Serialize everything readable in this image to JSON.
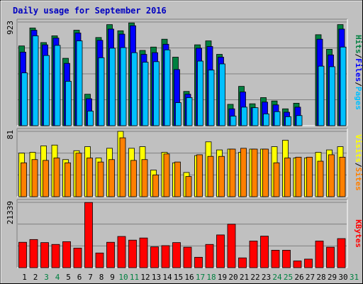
{
  "chart_data": {
    "type": "bar",
    "title": "Daily usage for September 2016",
    "days": [
      "1",
      "2",
      "3",
      "4",
      "5",
      "6",
      "7",
      "8",
      "9",
      "10",
      "11",
      "12",
      "13",
      "14",
      "15",
      "16",
      "17",
      "18",
      "19",
      "20",
      "21",
      "22",
      "23",
      "24",
      "25",
      "26",
      "27",
      "28",
      "29",
      "30",
      "31"
    ],
    "weekend_days": [
      "3",
      "4",
      "10",
      "11",
      "17",
      "18",
      "24",
      "25",
      "31"
    ],
    "panels": [
      {
        "id": "hits",
        "max_label": "923",
        "ylim": [
          0,
          923
        ],
        "legend": [
          "Pages",
          "Files",
          "Hits"
        ],
        "legend_separator": "/",
        "series": [
          {
            "name": "Hits",
            "color": "#008040",
            "values": [
              710,
              870,
              740,
              800,
              600,
              850,
              280,
              785,
              900,
              845,
              915,
              670,
              700,
              770,
              610,
              305,
              720,
              755,
              635,
              190,
              350,
              195,
              250,
              220,
              150,
              200,
              0,
              810,
              680,
              900
            ]
          },
          {
            "name": "Files",
            "color": "#0000ff",
            "values": [
              655,
              850,
              720,
              780,
              555,
              825,
              240,
              760,
              860,
              815,
              890,
              635,
              650,
              725,
              500,
              280,
              690,
              705,
              610,
              150,
              300,
              160,
              210,
              185,
              120,
              165,
              0,
              770,
              630,
              860
            ]
          },
          {
            "name": "Pages",
            "color": "#00c0ff",
            "values": [
              470,
              800,
              625,
              715,
              395,
              755,
              130,
              605,
              690,
              695,
              650,
              565,
              570,
              675,
              205,
              250,
              575,
              495,
              550,
              85,
              165,
              160,
              105,
              125,
              80,
              90,
              0,
              530,
              525,
              700
            ]
          }
        ]
      },
      {
        "id": "visits",
        "max_label": "81",
        "ylim": [
          0,
          81
        ],
        "legend": [
          "Sites",
          "Visits"
        ],
        "legend_separator": "/",
        "series": [
          {
            "name": "Visits",
            "color": "#ffff00",
            "values": [
              54,
              55,
              63,
              64,
              46,
              57,
              62,
              48,
              60,
              81,
              60,
              62,
              33,
              55,
              42,
              30,
              51,
              68,
              58,
              59,
              55,
              59,
              59,
              62,
              70,
              48,
              48,
              55,
              58,
              62
            ]
          },
          {
            "name": "Sites",
            "color": "#ff8000",
            "values": [
              42,
              46,
              45,
              48,
              42,
              54,
              48,
              43,
              46,
              73,
              45,
              46,
              27,
              53,
              43,
              25,
              52,
              50,
              50,
              59,
              60,
              59,
              59,
              42,
              48,
              49,
              49,
              44,
              52,
              49
            ]
          }
        ]
      },
      {
        "id": "kbytes",
        "max_label": "21339",
        "ylim": [
          0,
          21339
        ],
        "legend": [
          "KBytes"
        ],
        "legend_separator": "",
        "series": [
          {
            "name": "KBytes",
            "color": "#ff0000",
            "values": [
              8300,
              9200,
              8200,
              7600,
              8500,
              6400,
              21300,
              4800,
              8300,
              10200,
              9000,
              9700,
              6800,
              7200,
              8200,
              6700,
              3400,
              7600,
              10700,
              14200,
              3200,
              8700,
              10300,
              5700,
              5700,
              2200,
              2800,
              8700,
              6700,
              9500
            ]
          }
        ]
      }
    ]
  }
}
